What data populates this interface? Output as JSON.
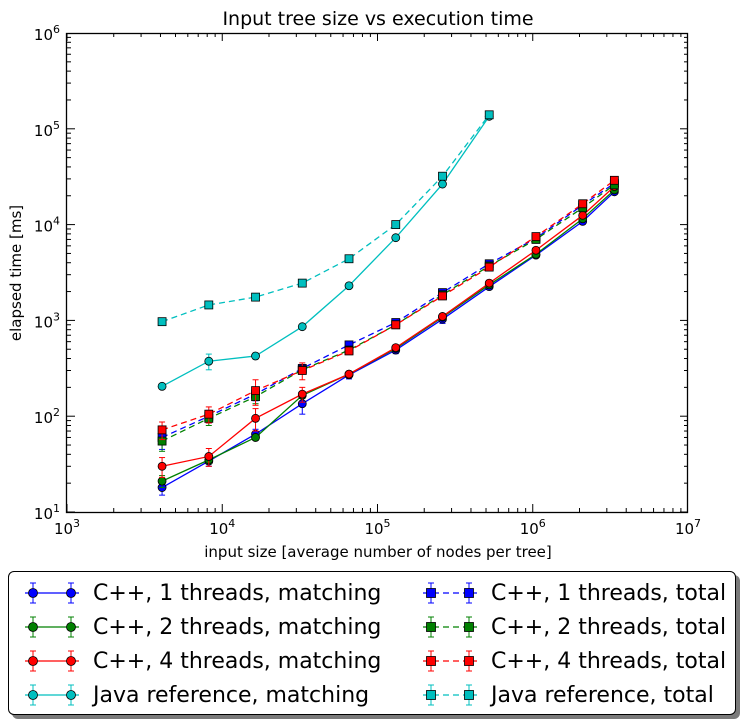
{
  "chart_data": {
    "type": "line",
    "title": "Input tree size vs execution time",
    "xlabel": "input size [average number of nodes per tree]",
    "ylabel": "elapsed time [ms]",
    "xscale": "log",
    "yscale": "log",
    "xlim": [
      1000,
      10000000
    ],
    "ylim": [
      10,
      1000000
    ],
    "xticks": [
      {
        "value": 1000,
        "base": "10",
        "exp": "3"
      },
      {
        "value": 10000,
        "base": "10",
        "exp": "4"
      },
      {
        "value": 100000,
        "base": "10",
        "exp": "5"
      },
      {
        "value": 1000000,
        "base": "10",
        "exp": "6"
      },
      {
        "value": 10000000,
        "base": "10",
        "exp": "7"
      }
    ],
    "yticks": [
      {
        "value": 10,
        "base": "10",
        "exp": "1"
      },
      {
        "value": 100,
        "base": "10",
        "exp": "2"
      },
      {
        "value": 1000,
        "base": "10",
        "exp": "3"
      },
      {
        "value": 10000,
        "base": "10",
        "exp": "4"
      },
      {
        "value": 100000,
        "base": "10",
        "exp": "5"
      },
      {
        "value": 1000000,
        "base": "10",
        "exp": "6"
      }
    ],
    "grid": false,
    "legend": "below-plot, two columns",
    "series": [
      {
        "name": "C++, 1 threads, matching",
        "color": "#0000ff",
        "marker": "circle",
        "linestyle": "solid",
        "x": [
          4096,
          8192,
          16384,
          32768,
          65536,
          131072,
          262144,
          524288,
          1048576,
          2097152,
          3355443
        ],
        "y": [
          18,
          34,
          65,
          135,
          270,
          490,
          1030,
          2250,
          4800,
          10800,
          22000
        ],
        "err": [
          3,
          4,
          8,
          30,
          25,
          40,
          100,
          150,
          300,
          700,
          1200
        ]
      },
      {
        "name": "C++, 2 threads, matching",
        "color": "#008000",
        "marker": "circle",
        "linestyle": "solid",
        "x": [
          4096,
          8192,
          16384,
          32768,
          65536,
          131072,
          262144,
          524288,
          1048576,
          2097152,
          3355443
        ],
        "y": [
          21,
          35,
          60,
          165,
          275,
          510,
          1080,
          2350,
          4900,
          11500,
          23000
        ],
        "err": [
          3,
          3,
          4,
          12,
          18,
          35,
          80,
          160,
          300,
          700,
          1200
        ]
      },
      {
        "name": "C++, 4 threads, matching",
        "color": "#ff0000",
        "marker": "circle",
        "linestyle": "solid",
        "x": [
          4096,
          8192,
          16384,
          32768,
          65536,
          131072,
          262144,
          524288,
          1048576,
          2097152,
          3355443
        ],
        "y": [
          30,
          38,
          95,
          170,
          275,
          520,
          1100,
          2450,
          5400,
          12500,
          25000
        ],
        "err": [
          7,
          8,
          25,
          30,
          20,
          35,
          80,
          170,
          350,
          800,
          1500
        ]
      },
      {
        "name": "Java reference, matching",
        "color": "#00bfbf",
        "marker": "circle",
        "linestyle": "solid",
        "x": [
          4096,
          8192,
          16384,
          32768,
          65536,
          131072,
          262144,
          524288
        ],
        "y": [
          205,
          375,
          425,
          860,
          2300,
          7300,
          26500,
          135000
        ],
        "err": [
          12,
          70,
          30,
          40,
          100,
          300,
          1500,
          5000
        ]
      },
      {
        "name": "C++, 1 threads, total",
        "color": "#0000ff",
        "marker": "square",
        "linestyle": "dashed",
        "x": [
          4096,
          8192,
          16384,
          32768,
          65536,
          131072,
          262144,
          524288,
          1048576,
          2097152,
          3355443
        ],
        "y": [
          60,
          100,
          170,
          315,
          555,
          950,
          1950,
          3900,
          7200,
          16000,
          27000
        ],
        "err": [
          15,
          15,
          25,
          30,
          40,
          70,
          150,
          250,
          500,
          1000,
          1800
        ]
      },
      {
        "name": "C++, 2 threads, total",
        "color": "#008000",
        "marker": "square",
        "linestyle": "dashed",
        "x": [
          4096,
          8192,
          16384,
          32768,
          65536,
          131072,
          262144,
          524288,
          1048576,
          2097152,
          3355443
        ],
        "y": [
          55,
          95,
          160,
          305,
          490,
          900,
          1850,
          3700,
          7000,
          15000,
          26000
        ],
        "err": [
          12,
          15,
          25,
          30,
          40,
          60,
          130,
          250,
          500,
          1000,
          1800
        ]
      },
      {
        "name": "C++, 4 threads, total",
        "color": "#ff0000",
        "marker": "square",
        "linestyle": "dashed",
        "x": [
          4096,
          8192,
          16384,
          32768,
          65536,
          131072,
          262144,
          524288,
          1048576,
          2097152,
          3355443
        ],
        "y": [
          72,
          105,
          185,
          300,
          480,
          900,
          1800,
          3600,
          7500,
          16500,
          29000
        ],
        "err": [
          15,
          20,
          55,
          60,
          40,
          60,
          150,
          250,
          500,
          1000,
          2000
        ]
      },
      {
        "name": "Java reference, total",
        "color": "#00bfbf",
        "marker": "square",
        "linestyle": "dashed",
        "x": [
          4096,
          8192,
          16384,
          32768,
          65536,
          131072,
          262144,
          524288
        ],
        "y": [
          970,
          1450,
          1750,
          2450,
          4400,
          10000,
          32000,
          140000
        ],
        "err": [
          40,
          60,
          80,
          100,
          200,
          500,
          2000,
          6000
        ]
      }
    ]
  }
}
